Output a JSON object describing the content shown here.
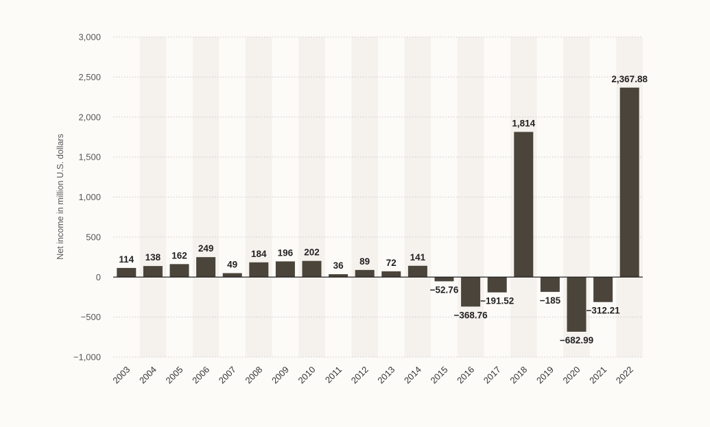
{
  "chart_data": {
    "type": "bar",
    "ylabel": "Net income in million U.S. dollars",
    "xlabel": "",
    "title": "",
    "ylim": [
      -1000,
      3000
    ],
    "yticks": [
      3000,
      2500,
      2000,
      1500,
      1000,
      500,
      0,
      -500,
      -1000
    ],
    "ytick_labels": [
      "3,000",
      "2,500",
      "2,000",
      "1,500",
      "1,000",
      "500",
      "0",
      "−500",
      "−1,000"
    ],
    "grid": true,
    "categories": [
      "2003",
      "2004",
      "2005",
      "2006",
      "2007",
      "2008",
      "2009",
      "2010",
      "2011",
      "2012",
      "2013",
      "2014",
      "2015",
      "2016",
      "2017",
      "2018",
      "2019",
      "2020",
      "2021",
      "2022"
    ],
    "values": [
      114,
      138,
      162,
      249,
      49,
      184,
      196,
      202,
      36,
      89,
      72,
      141,
      -52.76,
      -368.76,
      -191.52,
      1814,
      -185,
      -682.99,
      -312.21,
      2367.88
    ],
    "value_labels": [
      "114",
      "138",
      "162",
      "249",
      "49",
      "184",
      "196",
      "202",
      "36",
      "89",
      "72",
      "141",
      "−52.76",
      "−368.76",
      "−191.52",
      "1,814",
      "−185",
      "−682.99",
      "−312.21",
      "2,367.88"
    ],
    "colors": {
      "bar": "#4a443a",
      "background": "#fcfbf8",
      "band": "#f5f2ee",
      "grid": "#c8c8c8",
      "zero_line": "#222222"
    }
  }
}
